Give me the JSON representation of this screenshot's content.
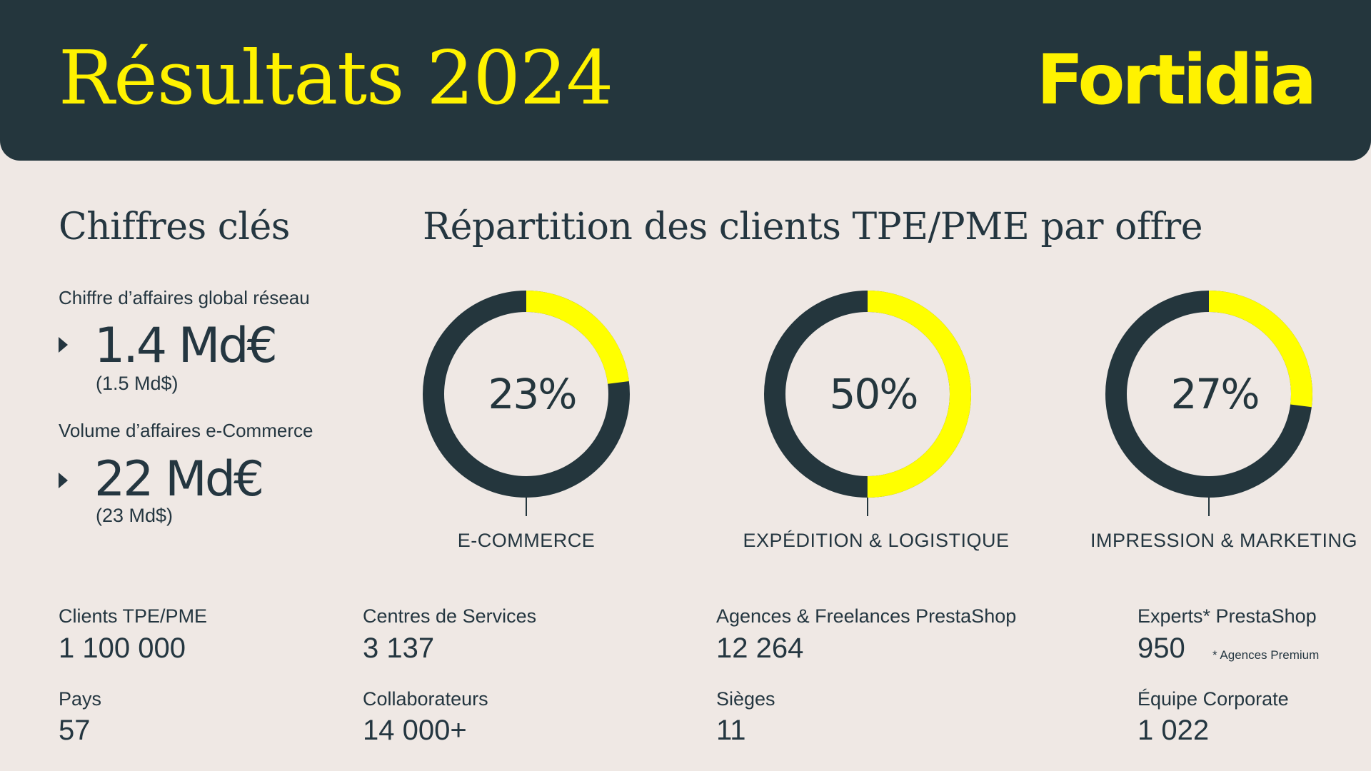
{
  "header": {
    "title": "Résultats 2024",
    "brand": "Fortidia"
  },
  "key_figures": {
    "title": "Chiffres clés",
    "items": [
      {
        "label": "Chiffre d’affaires global réseau",
        "value": "1.4 Md€",
        "sub": "(1.5 Md$)"
      },
      {
        "label": "Volume d’affaires e-Commerce",
        "value": "22 Md€",
        "sub": "(23 Md$)"
      }
    ]
  },
  "chart_section": {
    "title": "Répartition des clients TPE/PME par offre"
  },
  "chart_data": {
    "type": "pie",
    "title": "Répartition des clients TPE/PME par offre",
    "slices": [
      {
        "category": "E-COMMERCE",
        "value": 23,
        "value_label": "23%"
      },
      {
        "category": "EXPÉDITION & LOGISTIQUE",
        "value": 50,
        "value_label": "50%"
      },
      {
        "category": "IMPRESSION & MARKETING",
        "value": 27,
        "value_label": "27%"
      }
    ],
    "colors": {
      "highlight": "#FFFF00",
      "remainder": "#24363D"
    }
  },
  "stats": [
    {
      "label": "Clients TPE/PME",
      "value": "1 100 000"
    },
    {
      "label": "Centres de Services",
      "value": "3 137"
    },
    {
      "label": "Agences & Freelances PrestaShop",
      "value": "12 264"
    },
    {
      "label": "Experts* PrestaShop",
      "value": "950"
    },
    {
      "label": "Pays",
      "value": "57"
    },
    {
      "label": "Collaborateurs",
      "value": "14 000+"
    },
    {
      "label": "Sièges",
      "value": "11"
    },
    {
      "label": "Équipe Corporate",
      "value": "1 022"
    }
  ],
  "footnote": "* Agences Premium",
  "colors": {
    "dark": "#24363D",
    "accent": "#FFF200",
    "background": "#EFE8E4"
  }
}
